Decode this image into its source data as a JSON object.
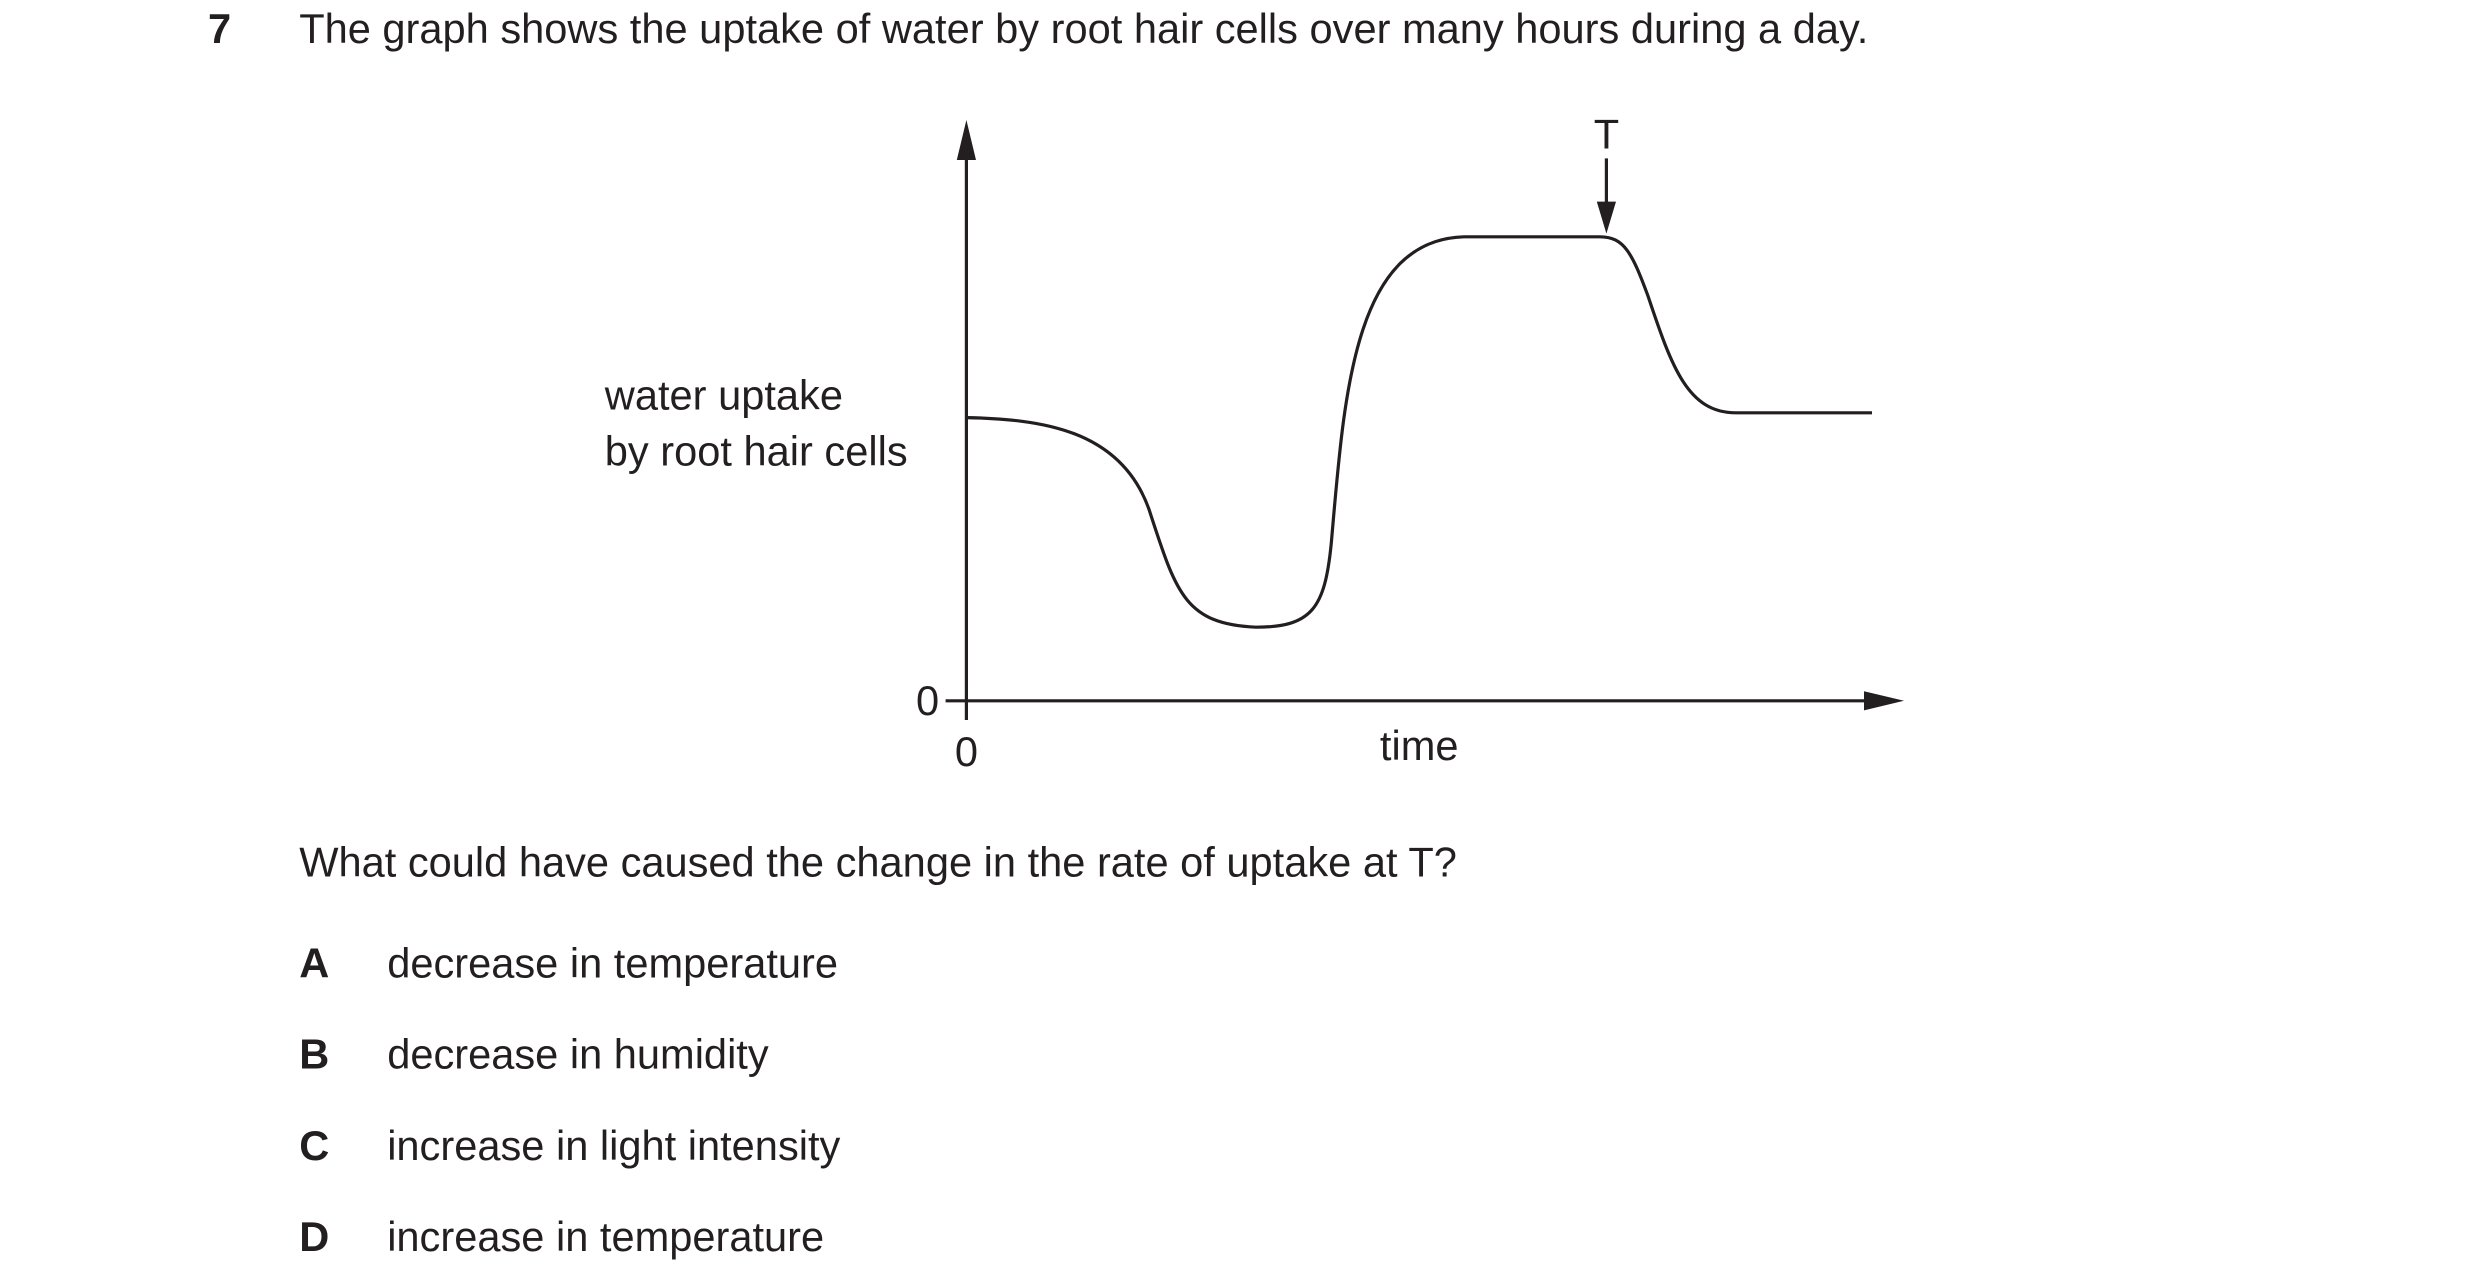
{
  "question": {
    "number": "7",
    "stem": "The graph shows the uptake of water by root hair cells over many hours during a day.",
    "prompt": "What could have caused the change in the rate of uptake at T?",
    "options": [
      {
        "letter": "A",
        "text": "decrease in temperature"
      },
      {
        "letter": "B",
        "text": "decrease in humidity"
      },
      {
        "letter": "C",
        "text": "increase in light intensity"
      },
      {
        "letter": "D",
        "text": "increase in temperature"
      }
    ]
  },
  "graph": {
    "y_label": [
      "water uptake",
      "by root hair cells"
    ],
    "x_label": "time",
    "y_origin": "0",
    "x_origin": "0",
    "marker": "T"
  }
}
